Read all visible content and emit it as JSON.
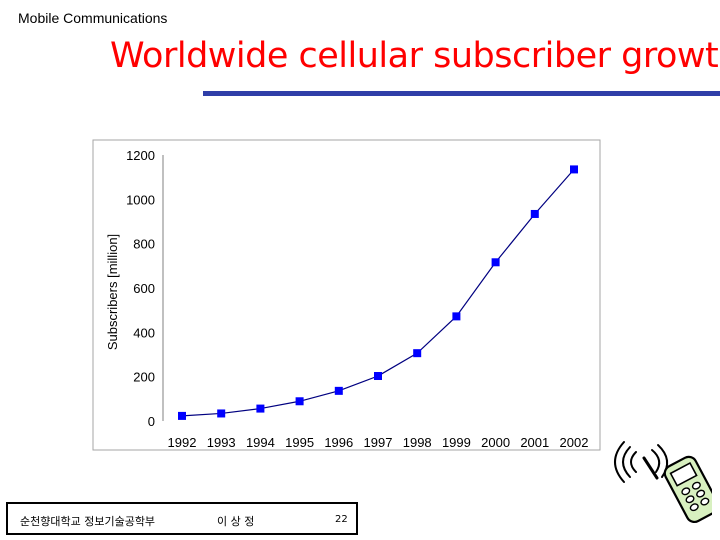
{
  "header": {
    "label": "Mobile Communications"
  },
  "slide": {
    "title": "Worldwide cellular subscriber growth"
  },
  "chart_data": {
    "type": "line",
    "title": "",
    "xlabel": "",
    "ylabel": "Subscribers [million]",
    "ylim": [
      0,
      1200
    ],
    "yticks": [
      "0",
      "200",
      "400",
      "600",
      "800",
      "1000",
      "1200"
    ],
    "categories": [
      "1992",
      "1993",
      "1994",
      "1995",
      "1996",
      "1997",
      "1998",
      "1999",
      "2000",
      "2001",
      "2002"
    ],
    "series": [
      {
        "values": [
          23,
          34,
          56,
          89,
          136,
          203,
          306,
          472,
          716,
          934,
          1135
        ]
      }
    ],
    "grid": false,
    "colors": {
      "series": "#0000ff",
      "axis": "#808080",
      "frame": "#a6a6a6"
    }
  },
  "footer": {
    "department": "순천향대학교 정보기술공학부",
    "author": "이 상 정",
    "page": "22"
  },
  "icons": {
    "decoration": "mobile-phone-icon"
  }
}
